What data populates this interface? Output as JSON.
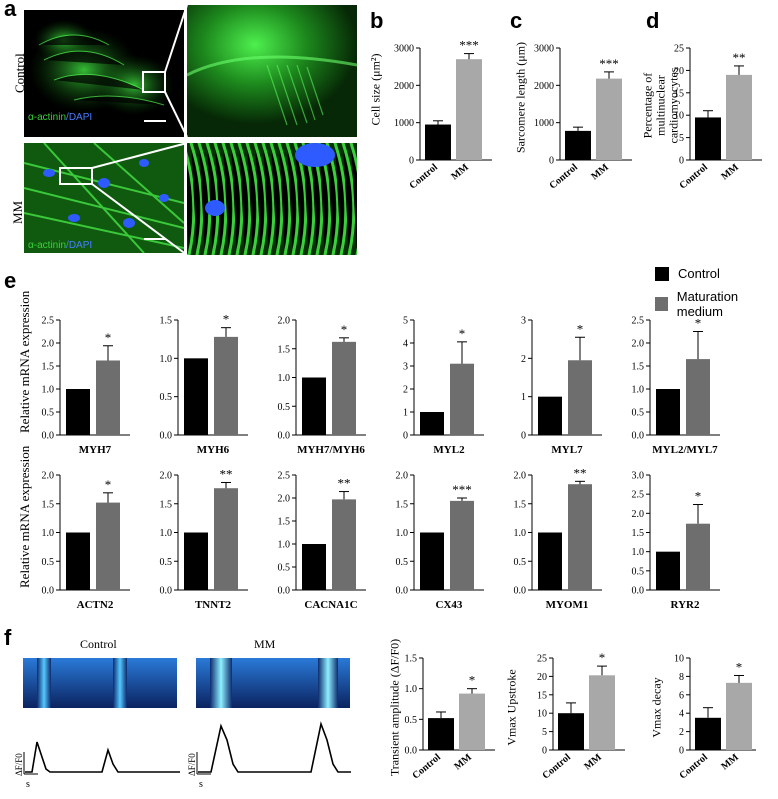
{
  "panels": {
    "a": {
      "letter": "a",
      "row_labels": [
        "Control",
        "MM"
      ],
      "stain_label": "α-actinin",
      "stain_sep": "/",
      "dapi_label": "DAPI"
    },
    "b": {
      "letter": "b"
    },
    "c": {
      "letter": "c"
    },
    "d": {
      "letter": "d"
    },
    "e": {
      "letter": "e",
      "ylabel": "Relative mRNA expression"
    },
    "f": {
      "letter": "f",
      "kymo_titles": [
        "Control",
        "MM"
      ],
      "trace_axis_label": "ΔF/F0",
      "trace_time_label": "s"
    }
  },
  "legend": {
    "items": [
      {
        "label": "Control",
        "color": "#000000"
      },
      {
        "label": "Maturation medium",
        "color": "#6e6e6e"
      }
    ]
  },
  "colors": {
    "control": "#000000",
    "mm_light": "#a8a8a8",
    "mm_dark": "#6e6e6e",
    "green": "#39d339",
    "dapi": "#2e5bff",
    "kymo_bg": "#0d2a6e",
    "kymo_band": "#55c8ff"
  },
  "chart_data": [
    {
      "id": "b",
      "type": "bar",
      "categories": [
        "Control",
        "MM"
      ],
      "values": [
        950,
        2700
      ],
      "errors": [
        100,
        150
      ],
      "ylim": [
        0,
        3000
      ],
      "yticks": [
        0,
        1000,
        2000,
        3000
      ],
      "ylabel": "Cell size (μm²)",
      "significance": "***"
    },
    {
      "id": "c",
      "type": "bar",
      "categories": [
        "Control",
        "MM"
      ],
      "values": [
        780,
        2180
      ],
      "errors": [
        100,
        180
      ],
      "ylim": [
        0,
        3000
      ],
      "yticks": [
        0,
        1000,
        2000,
        3000
      ],
      "ylabel": "Sarcomere length (μm)",
      "significance": "***"
    },
    {
      "id": "d",
      "type": "bar",
      "categories": [
        "Control",
        "MM"
      ],
      "values": [
        9.5,
        19
      ],
      "errors": [
        1.5,
        2
      ],
      "ylim": [
        0,
        25
      ],
      "yticks": [
        0,
        5,
        10,
        15,
        20,
        25
      ],
      "ylabel": "Percentage of multinuclear cardiomyocytes",
      "significance": "**"
    },
    {
      "id": "MYH7",
      "type": "bar",
      "xlabel": "MYH7",
      "categories": [
        "Control",
        "Maturation medium"
      ],
      "values": [
        1.0,
        1.62
      ],
      "errors": [
        0,
        0.32
      ],
      "ylim": [
        0,
        2.5
      ],
      "yticks": [
        0.0,
        0.5,
        1.0,
        1.5,
        2.0,
        2.5
      ],
      "significance": "*"
    },
    {
      "id": "MYH6",
      "type": "bar",
      "xlabel": "MYH6",
      "categories": [
        "Control",
        "Maturation medium"
      ],
      "values": [
        1.0,
        1.28
      ],
      "errors": [
        0,
        0.12
      ],
      "ylim": [
        0,
        1.5
      ],
      "yticks": [
        0.0,
        0.5,
        1.0,
        1.5
      ],
      "significance": "*"
    },
    {
      "id": "MYH7/MYH6",
      "type": "bar",
      "xlabel": "MYH7/MYH6",
      "categories": [
        "Control",
        "Maturation medium"
      ],
      "values": [
        1.0,
        1.62
      ],
      "errors": [
        0,
        0.07
      ],
      "ylim": [
        0,
        2.0
      ],
      "yticks": [
        0.0,
        0.5,
        1.0,
        1.5,
        2.0
      ],
      "significance": "*"
    },
    {
      "id": "MYL2",
      "type": "bar",
      "xlabel": "MYL2",
      "categories": [
        "Control",
        "Maturation medium"
      ],
      "values": [
        1.0,
        3.1
      ],
      "errors": [
        0,
        0.95
      ],
      "ylim": [
        0,
        5
      ],
      "yticks": [
        0,
        1,
        2,
        3,
        4,
        5
      ],
      "significance": "*"
    },
    {
      "id": "MYL7",
      "type": "bar",
      "xlabel": "MYL7",
      "categories": [
        "Control",
        "Maturation medium"
      ],
      "values": [
        1.0,
        1.95
      ],
      "errors": [
        0,
        0.6
      ],
      "ylim": [
        0,
        3
      ],
      "yticks": [
        0,
        1,
        2,
        3
      ],
      "significance": "*"
    },
    {
      "id": "MYL2/MYL7",
      "type": "bar",
      "xlabel": "MYL2/MYL7",
      "categories": [
        "Control",
        "Maturation medium"
      ],
      "values": [
        1.0,
        1.65
      ],
      "errors": [
        0,
        0.6
      ],
      "ylim": [
        0,
        2.5
      ],
      "yticks": [
        0.0,
        0.5,
        1.0,
        1.5,
        2.0,
        2.5
      ],
      "significance": "*"
    },
    {
      "id": "ACTN2",
      "type": "bar",
      "xlabel": "ACTN2",
      "categories": [
        "Control",
        "Maturation medium"
      ],
      "values": [
        1.0,
        1.52
      ],
      "errors": [
        0,
        0.17
      ],
      "ylim": [
        0,
        2.0
      ],
      "yticks": [
        0.0,
        0.5,
        1.0,
        1.5,
        2.0
      ],
      "significance": "*"
    },
    {
      "id": "TNNT2",
      "type": "bar",
      "xlabel": "TNNT2",
      "categories": [
        "Control",
        "Maturation medium"
      ],
      "values": [
        1.0,
        1.77
      ],
      "errors": [
        0,
        0.1
      ],
      "ylim": [
        0,
        2.0
      ],
      "yticks": [
        0.0,
        0.5,
        1.0,
        1.5,
        2.0
      ],
      "significance": "**"
    },
    {
      "id": "CACNA1C",
      "type": "bar",
      "xlabel": "CACNA1C",
      "categories": [
        "Control",
        "Maturation medium"
      ],
      "values": [
        1.0,
        1.97
      ],
      "errors": [
        0,
        0.17
      ],
      "ylim": [
        0,
        2.5
      ],
      "yticks": [
        0.0,
        0.5,
        1.0,
        1.5,
        2.0,
        2.5
      ],
      "significance": "**"
    },
    {
      "id": "CX43",
      "type": "bar",
      "xlabel": "CX43",
      "categories": [
        "Control",
        "Maturation medium"
      ],
      "values": [
        1.0,
        1.55
      ],
      "errors": [
        0,
        0.05
      ],
      "ylim": [
        0,
        2.0
      ],
      "yticks": [
        0.0,
        0.5,
        1.0,
        1.5,
        2.0
      ],
      "significance": "***"
    },
    {
      "id": "MYOM1",
      "type": "bar",
      "xlabel": "MYOM1",
      "categories": [
        "Control",
        "Maturation medium"
      ],
      "values": [
        1.0,
        1.84
      ],
      "errors": [
        0,
        0.05
      ],
      "ylim": [
        0,
        2.0
      ],
      "yticks": [
        0.0,
        0.5,
        1.0,
        1.5,
        2.0
      ],
      "significance": "**"
    },
    {
      "id": "RYR2",
      "type": "bar",
      "xlabel": "RYR2",
      "categories": [
        "Control",
        "Maturation medium"
      ],
      "values": [
        1.0,
        1.73
      ],
      "errors": [
        0,
        0.5
      ],
      "ylim": [
        0,
        3.0
      ],
      "yticks": [
        0.0,
        0.5,
        1.0,
        1.5,
        2.0,
        2.5,
        3.0
      ],
      "significance": "*"
    },
    {
      "id": "f1",
      "type": "bar",
      "categories": [
        "Control",
        "MM"
      ],
      "values": [
        0.52,
        0.92
      ],
      "errors": [
        0.1,
        0.08
      ],
      "ylim": [
        0,
        1.5
      ],
      "yticks": [
        0.0,
        0.5,
        1.0,
        1.5
      ],
      "ylabel": "Transient amplitude (ΔF/F0)",
      "significance": "*"
    },
    {
      "id": "f2",
      "type": "bar",
      "categories": [
        "Control",
        "MM"
      ],
      "values": [
        10,
        20.3
      ],
      "errors": [
        2.8,
        2.5
      ],
      "ylim": [
        0,
        25
      ],
      "yticks": [
        0,
        5,
        10,
        15,
        20,
        25
      ],
      "ylabel": "Vmax Upstroke",
      "significance": "*"
    },
    {
      "id": "f3",
      "type": "bar",
      "categories": [
        "Control",
        "MM"
      ],
      "values": [
        3.5,
        7.3
      ],
      "errors": [
        1.1,
        0.8
      ],
      "ylim": [
        0,
        10
      ],
      "yticks": [
        0,
        2,
        4,
        6,
        8,
        10
      ],
      "ylabel": "Vmax decay",
      "significance": "*"
    }
  ]
}
